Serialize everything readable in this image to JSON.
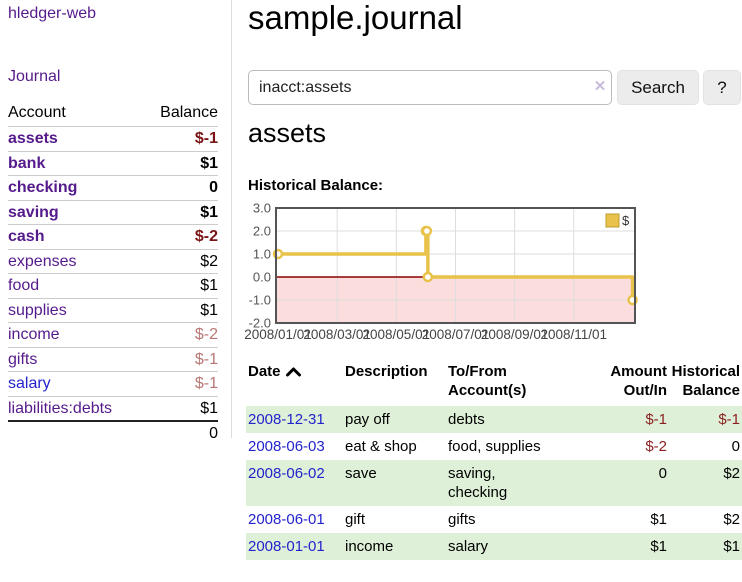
{
  "brand": "hledger-web",
  "nav": {
    "journal": "Journal"
  },
  "sidebar": {
    "headers": {
      "account": "Account",
      "balance": "Balance"
    },
    "accounts": [
      {
        "name": "assets",
        "balance": "$-1"
      },
      {
        "name": "bank",
        "balance": "$1"
      },
      {
        "name": "checking",
        "balance": "0"
      },
      {
        "name": "saving",
        "balance": "$1"
      },
      {
        "name": "cash",
        "balance": "$-2"
      },
      {
        "name": "expenses",
        "balance": "$2"
      },
      {
        "name": "food",
        "balance": "$1"
      },
      {
        "name": "supplies",
        "balance": "$1"
      },
      {
        "name": "income",
        "balance": "$-2"
      },
      {
        "name": "gifts",
        "balance": "$-1"
      },
      {
        "name": "salary",
        "balance": "$-1"
      },
      {
        "name": "liabilities:debts",
        "balance": "$1"
      }
    ],
    "total": "0"
  },
  "main": {
    "title": "sample.journal",
    "search": {
      "query": "inacct:assets",
      "clear_glyph": "✕",
      "button_label": "Search",
      "help_label": "?"
    },
    "account_heading": "assets",
    "section_label": "Historical Balance:"
  },
  "chart_data": {
    "type": "line",
    "title": "Historical Balance:",
    "step": true,
    "series": [
      {
        "name": "$",
        "color": "#e8c24a",
        "points": [
          [
            "2008-01-01",
            1
          ],
          [
            "2008-06-01",
            2
          ],
          [
            "2008-06-02",
            2
          ],
          [
            "2008-06-03",
            0
          ],
          [
            "2008-12-31",
            -1
          ]
        ]
      }
    ],
    "ylim": [
      -2.0,
      3.0
    ],
    "yticks": [
      3.0,
      2.0,
      1.0,
      0.0,
      -1.0,
      -2.0
    ],
    "xticks": [
      "2008/01/01",
      "2008/03/01",
      "2008/05/01",
      "2008/07/01",
      "2008/09/01",
      "2008/11/01"
    ],
    "legend_position": "top-right",
    "grid": true,
    "negative_region_color": "#fbdddd",
    "zero_line_color": "#8b0000",
    "border_color": "#545454"
  },
  "register": {
    "headers": {
      "date": "Date",
      "description": "Description",
      "tofrom": "To/From Account(s)",
      "amount": "Amount Out/In",
      "balance": "Historical Balance"
    },
    "rows": [
      {
        "date": "2008-12-31",
        "description": "pay off",
        "accounts": "debts",
        "amount": "$-1",
        "balance": "$-1"
      },
      {
        "date": "2008-06-03",
        "description": "eat & shop",
        "accounts": "food, supplies",
        "amount": "$-2",
        "balance": "0"
      },
      {
        "date": "2008-06-02",
        "description": "save",
        "accounts": "saving, checking",
        "amount": "0",
        "balance": "$2"
      },
      {
        "date": "2008-06-01",
        "description": "gift",
        "accounts": "gifts",
        "amount": "$1",
        "balance": "$2"
      },
      {
        "date": "2008-01-01",
        "description": "income",
        "accounts": "salary",
        "amount": "$1",
        "balance": "$1"
      }
    ]
  },
  "colors": {
    "accent_purple": "#551a8b",
    "link_blue": "#2323cd",
    "negative_red": "#8b2222",
    "row_green": "#dff0d8",
    "chart_gold": "#e8c24a"
  }
}
